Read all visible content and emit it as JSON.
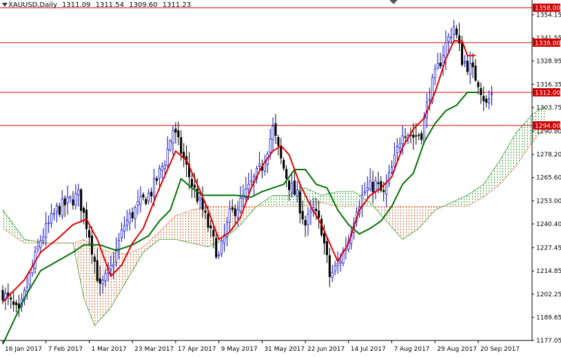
{
  "header": {
    "symbol": "XAUUSD,Daily",
    "open": "1311.09",
    "high": "1311.54",
    "low": "1309.60",
    "close": "1311.23"
  },
  "colors": {
    "background": "#ffffff",
    "bull_body": "#ffffff",
    "bull_wick": "#0000c8",
    "bear_body": "#000000",
    "bear_wick": "#000000",
    "tenkan": "#e00000",
    "kijun": "#007000",
    "cloud_bull": "#2ea02e",
    "cloud_bear": "#e05a20",
    "hline": "#cc0000",
    "label_bg": "#cc0000",
    "label_text": "#ffffff"
  },
  "chart_data": {
    "type": "candlestick",
    "symbol": "XAUUSD",
    "timeframe": "Daily",
    "ylim": [
      1177.05,
      1362.2
    ],
    "y_ticks": [
      "1354.15",
      "1341.55",
      "1328.95",
      "1316.35",
      "1303.75",
      "1290.80",
      "1278.20",
      "1265.60",
      "1253.00",
      "1240.40",
      "1227.45",
      "1214.85",
      "1202.25",
      "1189.65",
      "1177.05"
    ],
    "y_tick_values": [
      1354.15,
      1341.55,
      1328.95,
      1316.35,
      1303.75,
      1290.8,
      1278.2,
      1265.6,
      1253.0,
      1240.4,
      1227.45,
      1214.85,
      1202.25,
      1189.65,
      1177.05
    ],
    "x_ticks": [
      "16 Jan 2017",
      "7 Feb 2017",
      "1 Mar 2017",
      "23 Mar 2017",
      "17 Apr 2017",
      "9 May 2017",
      "31 May 2017",
      "22 Jun 2017",
      "14 Jul 2017",
      "7 Aug 2017",
      "29 Aug 2017",
      "20 Sep 2017"
    ],
    "x_tick_bar_index": [
      0,
      16,
      32,
      48,
      64,
      80,
      96,
      112,
      128,
      144,
      160,
      176
    ],
    "horizontal_levels": [
      {
        "value": 1358.0,
        "label": "1358.00"
      },
      {
        "value": 1339.0,
        "label": "1339.00"
      },
      {
        "value": 1312.0,
        "label": "1312.00"
      },
      {
        "value": 1294.0,
        "label": "1294.00"
      }
    ],
    "last_price": 1311.23,
    "close_path_keypoints": [
      [
        0,
        1203
      ],
      [
        6,
        1191
      ],
      [
        10,
        1212
      ],
      [
        14,
        1232
      ],
      [
        20,
        1248
      ],
      [
        25,
        1253
      ],
      [
        28,
        1256
      ],
      [
        32,
        1235
      ],
      [
        36,
        1205
      ],
      [
        40,
        1216
      ],
      [
        45,
        1240
      ],
      [
        50,
        1250
      ],
      [
        55,
        1258
      ],
      [
        60,
        1275
      ],
      [
        63,
        1292
      ],
      [
        66,
        1280
      ],
      [
        70,
        1262
      ],
      [
        74,
        1248
      ],
      [
        77,
        1235
      ],
      [
        80,
        1222
      ],
      [
        84,
        1245
      ],
      [
        88,
        1252
      ],
      [
        92,
        1262
      ],
      [
        96,
        1272
      ],
      [
        100,
        1292
      ],
      [
        103,
        1275
      ],
      [
        106,
        1262
      ],
      [
        109,
        1255
      ],
      [
        112,
        1240
      ],
      [
        115,
        1248
      ],
      [
        118,
        1238
      ],
      [
        121,
        1212
      ],
      [
        124,
        1218
      ],
      [
        128,
        1232
      ],
      [
        131,
        1250
      ],
      [
        134,
        1258
      ],
      [
        138,
        1262
      ],
      [
        141,
        1256
      ],
      [
        145,
        1275
      ],
      [
        148,
        1292
      ],
      [
        152,
        1288
      ],
      [
        155,
        1290
      ],
      [
        158,
        1312
      ],
      [
        161,
        1325
      ],
      [
        164,
        1338
      ],
      [
        167,
        1348
      ],
      [
        170,
        1330
      ],
      [
        173,
        1325
      ],
      [
        176,
        1318
      ],
      [
        179,
        1305
      ],
      [
        181,
        1311.23
      ]
    ],
    "tenkan_keypoints": [
      [
        0,
        1198
      ],
      [
        8,
        1210
      ],
      [
        14,
        1225
      ],
      [
        20,
        1232
      ],
      [
        26,
        1240
      ],
      [
        31,
        1243
      ],
      [
        35,
        1232
      ],
      [
        40,
        1212
      ],
      [
        44,
        1218
      ],
      [
        48,
        1230
      ],
      [
        52,
        1238
      ],
      [
        58,
        1260
      ],
      [
        64,
        1280
      ],
      [
        68,
        1275
      ],
      [
        72,
        1262
      ],
      [
        76,
        1248
      ],
      [
        80,
        1232
      ],
      [
        84,
        1236
      ],
      [
        88,
        1244
      ],
      [
        92,
        1260
      ],
      [
        96,
        1272
      ],
      [
        100,
        1280
      ],
      [
        103,
        1283
      ],
      [
        106,
        1278
      ],
      [
        110,
        1262
      ],
      [
        114,
        1250
      ],
      [
        118,
        1240
      ],
      [
        121,
        1230
      ],
      [
        124,
        1220
      ],
      [
        128,
        1230
      ],
      [
        132,
        1248
      ],
      [
        136,
        1256
      ],
      [
        140,
        1260
      ],
      [
        144,
        1266
      ],
      [
        148,
        1282
      ],
      [
        152,
        1292
      ],
      [
        156,
        1298
      ],
      [
        160,
        1312
      ],
      [
        164,
        1330
      ],
      [
        167,
        1340
      ],
      [
        170,
        1340
      ],
      [
        172,
        1332
      ],
      [
        175,
        1332
      ]
    ],
    "kijun_keypoints": [
      [
        0,
        1175
      ],
      [
        8,
        1200
      ],
      [
        14,
        1215
      ],
      [
        20,
        1220
      ],
      [
        26,
        1225
      ],
      [
        30,
        1229
      ],
      [
        36,
        1229
      ],
      [
        42,
        1226
      ],
      [
        48,
        1229
      ],
      [
        54,
        1234
      ],
      [
        58,
        1242
      ],
      [
        62,
        1248
      ],
      [
        66,
        1265
      ],
      [
        70,
        1260
      ],
      [
        74,
        1256
      ],
      [
        80,
        1256
      ],
      [
        86,
        1256
      ],
      [
        92,
        1255
      ],
      [
        96,
        1258
      ],
      [
        100,
        1260
      ],
      [
        104,
        1262
      ],
      [
        108,
        1270
      ],
      [
        112,
        1270
      ],
      [
        116,
        1262
      ],
      [
        120,
        1260
      ],
      [
        124,
        1248
      ],
      [
        128,
        1240
      ],
      [
        132,
        1235
      ],
      [
        136,
        1238
      ],
      [
        140,
        1242
      ],
      [
        144,
        1250
      ],
      [
        148,
        1262
      ],
      [
        152,
        1268
      ],
      [
        156,
        1285
      ],
      [
        160,
        1295
      ],
      [
        164,
        1302
      ],
      [
        168,
        1305
      ],
      [
        172,
        1312
      ],
      [
        176,
        1312
      ]
    ],
    "span_a_keypoints": [
      [
        0,
        1248
      ],
      [
        8,
        1232
      ],
      [
        16,
        1230
      ],
      [
        26,
        1230
      ],
      [
        30,
        1200
      ],
      [
        34,
        1185
      ],
      [
        40,
        1195
      ],
      [
        46,
        1210
      ],
      [
        52,
        1225
      ],
      [
        58,
        1232
      ],
      [
        64,
        1232
      ],
      [
        70,
        1230
      ],
      [
        76,
        1228
      ],
      [
        82,
        1232
      ],
      [
        88,
        1240
      ],
      [
        94,
        1250
      ],
      [
        100,
        1256
      ],
      [
        106,
        1256
      ],
      [
        112,
        1260
      ],
      [
        118,
        1256
      ],
      [
        124,
        1258
      ],
      [
        130,
        1258
      ],
      [
        136,
        1252
      ],
      [
        142,
        1242
      ],
      [
        148,
        1232
      ],
      [
        154,
        1238
      ],
      [
        160,
        1248
      ],
      [
        166,
        1252
      ],
      [
        172,
        1256
      ],
      [
        178,
        1262
      ],
      [
        184,
        1275
      ],
      [
        190,
        1290
      ],
      [
        196,
        1300
      ],
      [
        200,
        1304
      ]
    ],
    "span_b_keypoints": [
      [
        0,
        1238
      ],
      [
        8,
        1230
      ],
      [
        16,
        1230
      ],
      [
        26,
        1230
      ],
      [
        30,
        1232
      ],
      [
        34,
        1228
      ],
      [
        40,
        1225
      ],
      [
        46,
        1224
      ],
      [
        52,
        1228
      ],
      [
        58,
        1236
      ],
      [
        64,
        1245
      ],
      [
        70,
        1248
      ],
      [
        76,
        1250
      ],
      [
        82,
        1250
      ],
      [
        88,
        1250
      ],
      [
        94,
        1250
      ],
      [
        100,
        1250
      ],
      [
        106,
        1250
      ],
      [
        112,
        1250
      ],
      [
        118,
        1252
      ],
      [
        124,
        1250
      ],
      [
        130,
        1250
      ],
      [
        136,
        1250
      ],
      [
        142,
        1250
      ],
      [
        148,
        1250
      ],
      [
        154,
        1250
      ],
      [
        160,
        1250
      ],
      [
        166,
        1250
      ],
      [
        172,
        1250
      ],
      [
        178,
        1255
      ],
      [
        184,
        1262
      ],
      [
        190,
        1272
      ],
      [
        196,
        1285
      ],
      [
        200,
        1292
      ]
    ],
    "xlabel": "",
    "ylabel": ""
  }
}
